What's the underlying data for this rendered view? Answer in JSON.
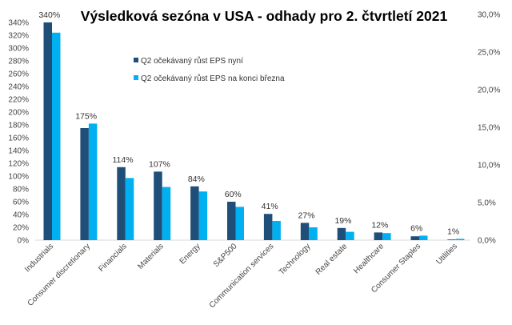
{
  "chart_data": {
    "type": "bar",
    "title": "Výsledková sezóna v USA - odhady pro 2. čtvrtletí 2021",
    "categories": [
      "Industrials",
      "Consumer discretionary",
      "Financials",
      "Materials",
      "Energy",
      "S&P500",
      "Communication services",
      "Technology",
      "Real estate",
      "Healthcare",
      "Consumer Staples",
      "Utilities"
    ],
    "series": [
      {
        "name": "Q2 očekávaný růst EPS nyní",
        "color": "#1f4e79",
        "values": [
          340,
          175,
          114,
          107,
          84,
          60,
          41,
          27,
          19,
          12,
          6,
          1
        ],
        "labels": [
          "340%",
          "175%",
          "114%",
          "107%",
          "84%",
          "60%",
          "41%",
          "27%",
          "19%",
          "12%",
          "6%",
          "1%"
        ]
      },
      {
        "name": "Q2 očekávaný růst EPS na konci března",
        "color": "#00b0f0",
        "values": [
          324,
          182,
          97,
          83,
          76,
          52,
          30,
          20,
          13,
          11,
          7,
          2
        ]
      }
    ],
    "y_left": {
      "range": [
        0,
        340
      ],
      "ticks": [
        "0%",
        "20%",
        "40%",
        "60%",
        "80%",
        "100%",
        "120%",
        "140%",
        "160%",
        "180%",
        "200%",
        "220%",
        "240%",
        "260%",
        "280%",
        "300%",
        "320%",
        "340%"
      ]
    },
    "y_right": {
      "range": [
        0,
        30
      ],
      "ticks": [
        "0,0%",
        "5,0%",
        "10,0%",
        "15,0%",
        "20,0%",
        "25,0%",
        "30,0%"
      ]
    },
    "grid": false,
    "legend_position": "top-left inside"
  }
}
